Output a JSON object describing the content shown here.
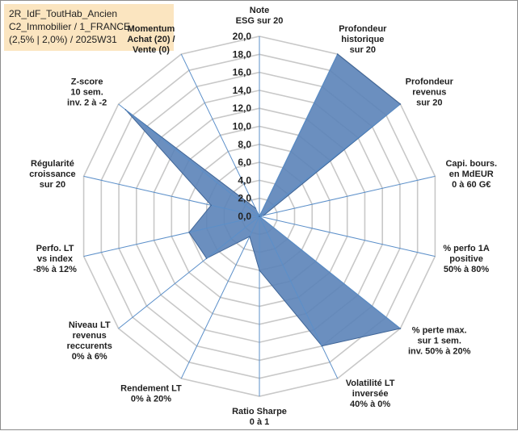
{
  "info": {
    "line1": "2R_IdF_ToutHab_Ancien",
    "line2": "C2_Immobilier / 1_FRANCE",
    "line3": "(2,5% | 2,0%) / 2025W31"
  },
  "chart_data": {
    "type": "radar",
    "rmax": 20,
    "ticks": [
      "0,0",
      "2,0",
      "4,0",
      "6,0",
      "8,0",
      "10,0",
      "12,0",
      "14,0",
      "16,0",
      "18,0",
      "20,0"
    ],
    "tick_values": [
      0,
      2,
      4,
      6,
      8,
      10,
      12,
      14,
      16,
      18,
      20
    ],
    "fill_color": "#5b83b8",
    "stroke_color": "#3e6496",
    "grid_color": "#c8c8c8",
    "spoke_color": "#5b8fc9",
    "axes": [
      {
        "label": [
          "Note",
          "ESG sur 20"
        ],
        "value": 0
      },
      {
        "label": [
          "Profondeur",
          "historique",
          "sur 20"
        ],
        "value": 20
      },
      {
        "label": [
          "Profondeur",
          "revenus",
          "sur 20"
        ],
        "value": 20
      },
      {
        "label": [
          "Capi. bours.",
          "en MdEUR",
          "0 à 60 G€"
        ],
        "value": 0.5
      },
      {
        "label": [
          "% perfo 1A",
          "positive",
          "50% à 80%"
        ],
        "value": 0
      },
      {
        "label": [
          "% perte max.",
          "sur 1 sem.",
          "inv. 50% à 20%"
        ],
        "value": 20
      },
      {
        "label": [
          "Volatilité LT",
          "inversée",
          "40% à 0%"
        ],
        "value": 16
      },
      {
        "label": [
          "Ratio Sharpe",
          "0 à 1"
        ],
        "value": 6
      },
      {
        "label": [
          "Rendement LT",
          "0% à 20%"
        ],
        "value": 2.5
      },
      {
        "label": [
          "Niveau LT",
          "revenus",
          "reccurents",
          "0% à 6%"
        ],
        "value": 7.5
      },
      {
        "label": [
          "Perfo. LT",
          "vs index",
          "-8% à 12%"
        ],
        "value": 8
      },
      {
        "label": [
          "Régularité",
          "croissance",
          "sur 20"
        ],
        "value": 5.5
      },
      {
        "label": [
          "Z-score",
          "10 sem.",
          "inv. 2 à -2"
        ],
        "value": 19
      },
      {
        "label": [
          "Momentum",
          "Achat (20) /",
          "Vente (0)"
        ],
        "value": 1
      }
    ]
  }
}
